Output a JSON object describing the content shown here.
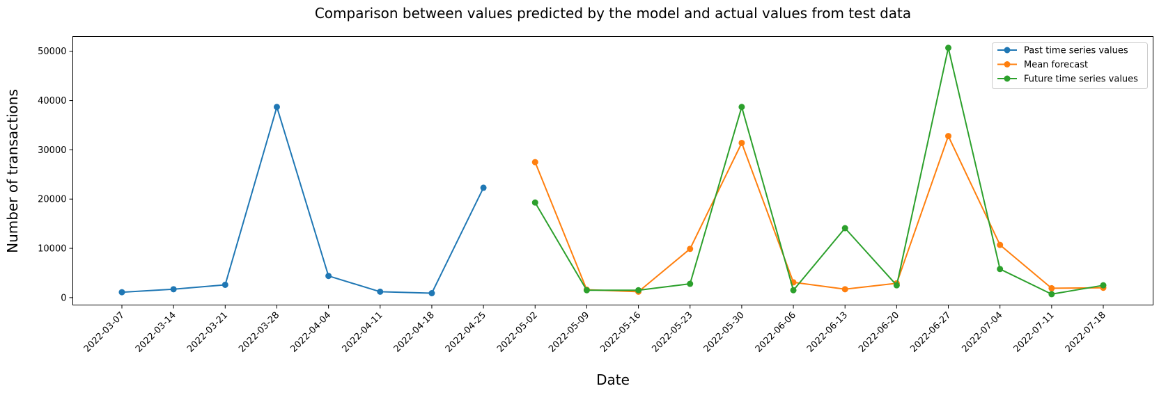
{
  "chart_data": {
    "type": "line",
    "title": "Comparison between values predicted by the model and actual values from test data",
    "xlabel": "Date",
    "ylabel": "Number of transactions",
    "categories": [
      "2022-03-07",
      "2022-03-14",
      "2022-03-21",
      "2022-03-28",
      "2022-04-04",
      "2022-04-11",
      "2022-04-18",
      "2022-04-25",
      "2022-05-02",
      "2022-05-09",
      "2022-05-16",
      "2022-05-23",
      "2022-05-30",
      "2022-06-06",
      "2022-06-13",
      "2022-06-20",
      "2022-06-27",
      "2022-07-04",
      "2022-07-11",
      "2022-07-18"
    ],
    "y_ticks": [
      0,
      10000,
      20000,
      30000,
      40000,
      50000
    ],
    "ylim": [
      -1500,
      53000
    ],
    "grid": false,
    "legend_position": "top-right",
    "series": [
      {
        "name": "Past time series values",
        "color": "#1f77b4",
        "x": [
          "2022-03-07",
          "2022-03-14",
          "2022-03-21",
          "2022-03-28",
          "2022-04-04",
          "2022-04-11",
          "2022-04-18",
          "2022-04-25"
        ],
        "values": [
          1100,
          1700,
          2600,
          38700,
          4400,
          1200,
          900,
          22300
        ]
      },
      {
        "name": "Mean forecast",
        "color": "#ff7f0e",
        "x": [
          "2022-05-02",
          "2022-05-09",
          "2022-05-16",
          "2022-05-23",
          "2022-05-30",
          "2022-06-06",
          "2022-06-13",
          "2022-06-20",
          "2022-06-27",
          "2022-07-04",
          "2022-07-11",
          "2022-07-18"
        ],
        "values": [
          27500,
          1600,
          1200,
          9900,
          31400,
          3100,
          1700,
          2900,
          32800,
          10700,
          1900,
          2000
        ]
      },
      {
        "name": "Future time series values",
        "color": "#2ca02c",
        "x": [
          "2022-05-02",
          "2022-05-09",
          "2022-05-16",
          "2022-05-23",
          "2022-05-30",
          "2022-06-06",
          "2022-06-13",
          "2022-06-20",
          "2022-06-27",
          "2022-07-04",
          "2022-07-11",
          "2022-07-18"
        ],
        "values": [
          19300,
          1500,
          1500,
          2800,
          38700,
          1500,
          14100,
          2500,
          50700,
          5800,
          700,
          2500
        ]
      }
    ]
  }
}
